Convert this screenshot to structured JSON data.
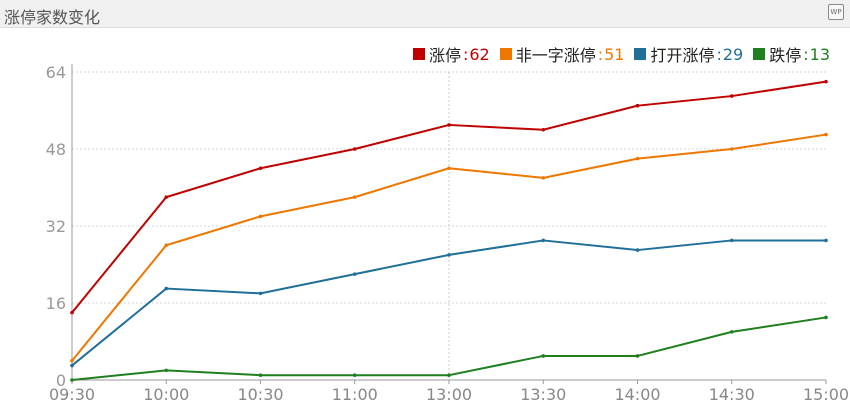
{
  "title": "涨停家数变化",
  "chart_data": {
    "type": "line",
    "x": [
      "09:30",
      "10:00",
      "10:30",
      "11:00",
      "13:00",
      "13:30",
      "14:00",
      "14:30",
      "15:00"
    ],
    "x_tick_labels": [
      "09:30",
      "10:00",
      "10:30",
      "11:00",
      "13:00",
      "13:30",
      "14:00",
      "14:30",
      "15:00"
    ],
    "y_tick_labels": [
      "0",
      "16",
      "32",
      "48",
      "64"
    ],
    "ylim": [
      0,
      64
    ],
    "grid": true,
    "legend_position": "top-right",
    "series": [
      {
        "name": "涨停",
        "color": "#c00000",
        "last": "62",
        "values": [
          14,
          38,
          44,
          48,
          53,
          52,
          57,
          59,
          62
        ]
      },
      {
        "name": "非一字涨停",
        "color": "#ee7700",
        "last": "51",
        "values": [
          4,
          28,
          34,
          38,
          44,
          42,
          46,
          48,
          51
        ]
      },
      {
        "name": "打开涨停",
        "color": "#1f6f99",
        "last": "29",
        "values": [
          3,
          19,
          18,
          22,
          26,
          29,
          27,
          29,
          29
        ]
      },
      {
        "name": "跌停",
        "color": "#1e7f1e",
        "last": "13",
        "values": [
          0,
          2,
          1,
          1,
          1,
          5,
          5,
          10,
          13
        ]
      }
    ]
  }
}
